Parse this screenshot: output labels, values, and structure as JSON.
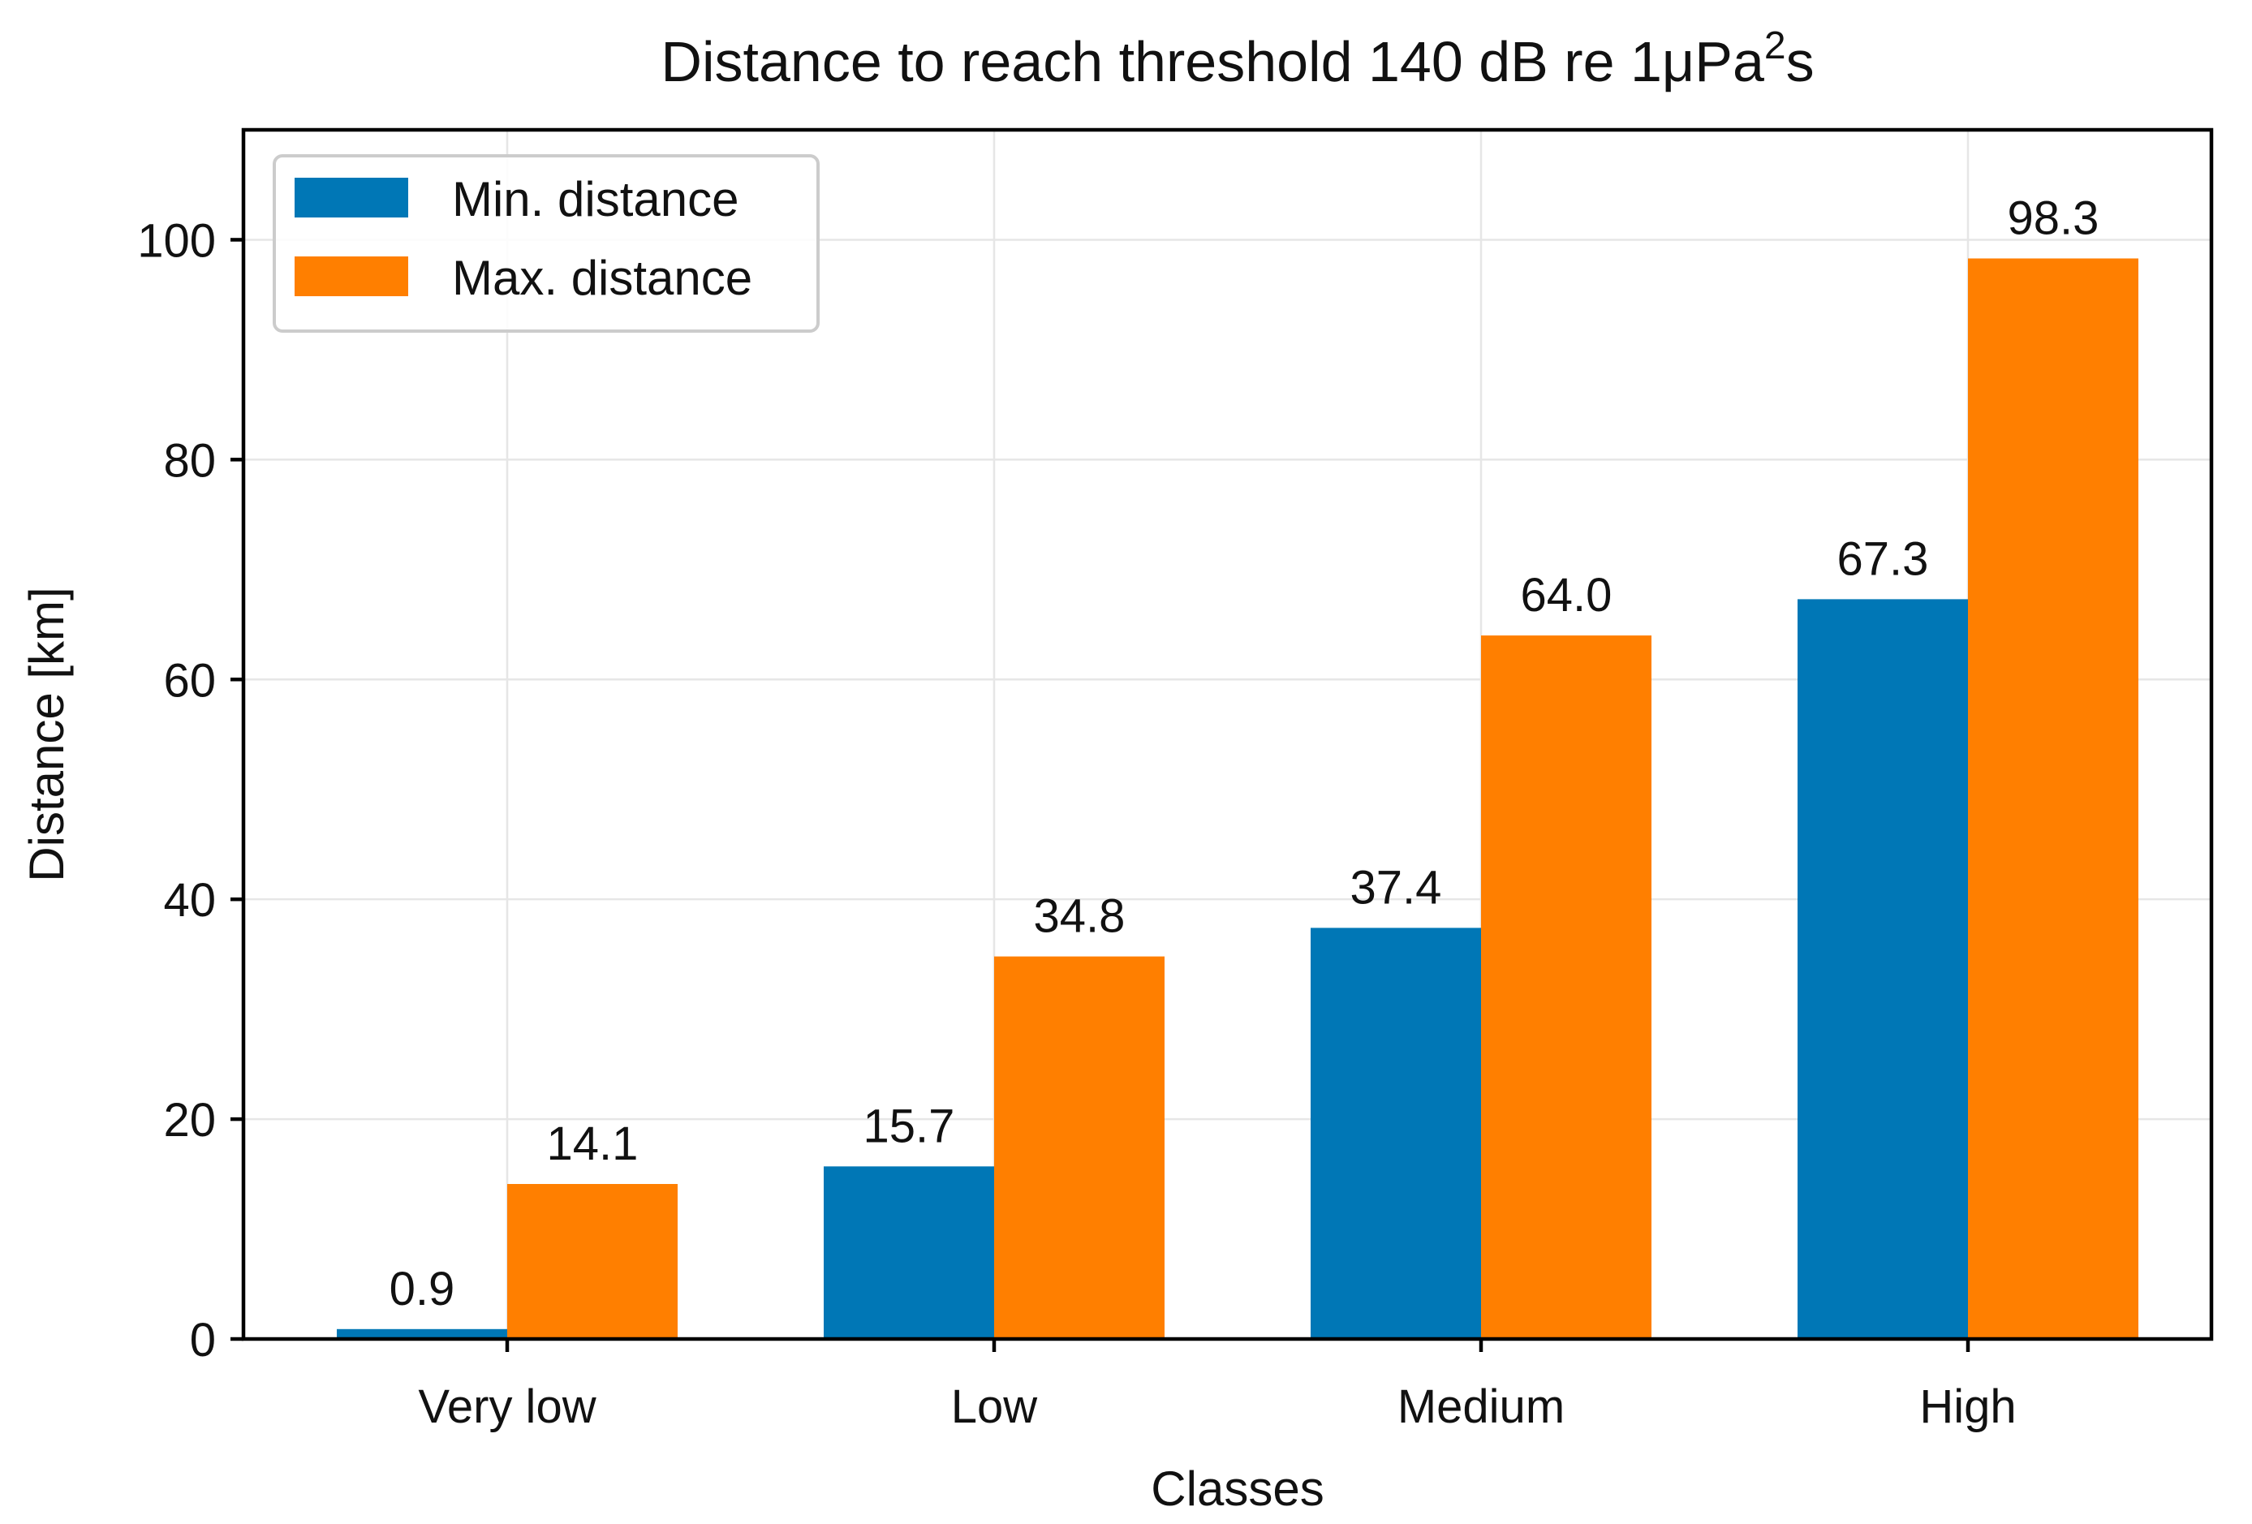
{
  "chart_data": {
    "type": "bar",
    "title": "Distance to reach threshold 140 dB re 1μPa",
    "title_superscript": "2",
    "title_suffix": "s",
    "xlabel": "Classes",
    "ylabel": "Distance [km]",
    "categories": [
      "Very low",
      "Low",
      "Medium",
      "High"
    ],
    "series": [
      {
        "name": "Min. distance",
        "color": "#0077b6",
        "values": [
          0.9,
          15.7,
          37.4,
          67.3
        ],
        "labels": [
          "0.9",
          "15.7",
          "37.4",
          "67.3"
        ]
      },
      {
        "name": "Max. distance",
        "color": "#ff7f00",
        "values": [
          14.1,
          34.8,
          64.0,
          98.3
        ],
        "labels": [
          "14.1",
          "34.8",
          "64.0",
          "98.3"
        ]
      }
    ],
    "ylim": [
      0,
      110
    ],
    "yticks": [
      0,
      20,
      40,
      60,
      80,
      100
    ],
    "ytick_labels": [
      "0",
      "20",
      "40",
      "60",
      "80",
      "100"
    ],
    "grid": true,
    "legend_position": "top-left"
  }
}
